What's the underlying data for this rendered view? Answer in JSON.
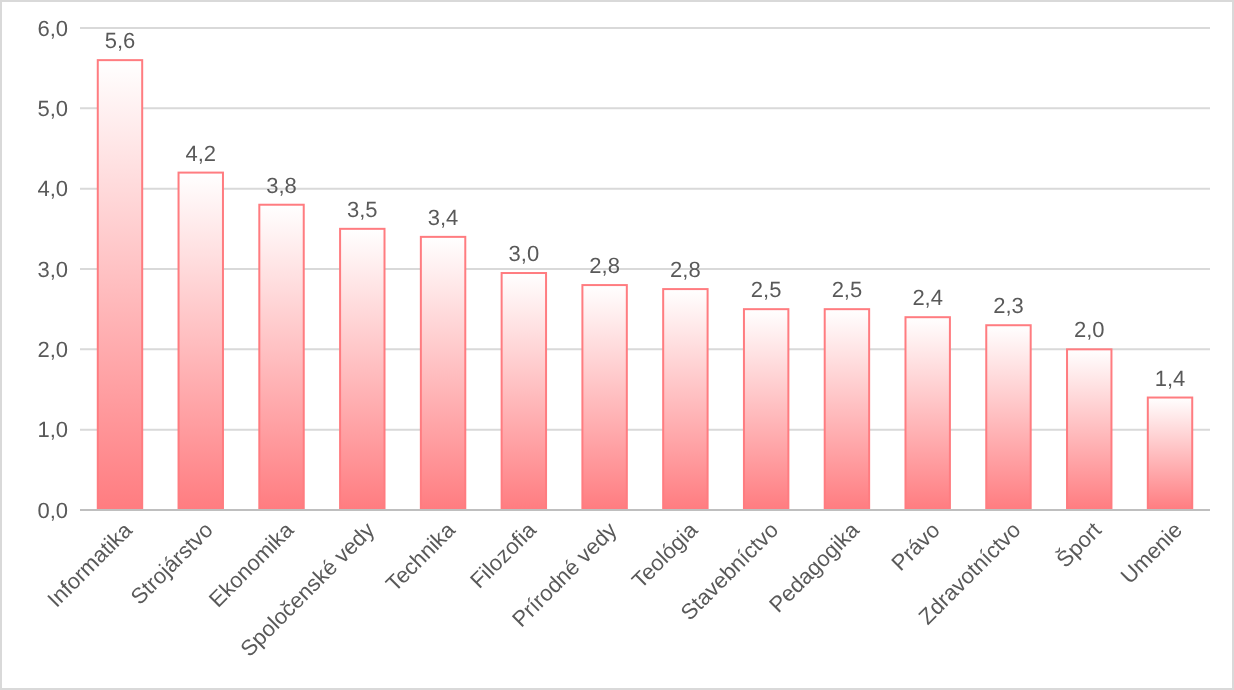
{
  "chart_data": {
    "type": "bar",
    "categories": [
      "Informatika",
      "Strojárstvo",
      "Ekonomika",
      "Spoločenské vedy",
      "Technika",
      "Filozofia",
      "Prírodné vedy",
      "Teológia",
      "Stavebníctvo",
      "Pedagogika",
      "Právo",
      "Zdravotníctvo",
      "Šport",
      "Umenie"
    ],
    "values": [
      5.6,
      4.2,
      3.8,
      3.5,
      3.4,
      2.95,
      2.8,
      2.75,
      2.5,
      2.5,
      2.4,
      2.3,
      2.0,
      1.4
    ],
    "value_labels": [
      "5,6",
      "4,2",
      "3,8",
      "3,5",
      "3,4",
      "3,0",
      "2,8",
      "2,8",
      "2,5",
      "2,5",
      "2,4",
      "2,3",
      "2,0",
      "1,4"
    ],
    "color": "#ff7c80",
    "ylim": [
      0,
      6
    ],
    "yticks": [
      {
        "value": 0,
        "label": "0,0"
      },
      {
        "value": 1,
        "label": "1,0"
      },
      {
        "value": 2,
        "label": "2,0"
      },
      {
        "value": 3,
        "label": "3,0"
      },
      {
        "value": 4,
        "label": "4,0"
      },
      {
        "value": 5,
        "label": "5,0"
      },
      {
        "value": 6,
        "label": "6,0"
      }
    ],
    "grid": "y"
  }
}
